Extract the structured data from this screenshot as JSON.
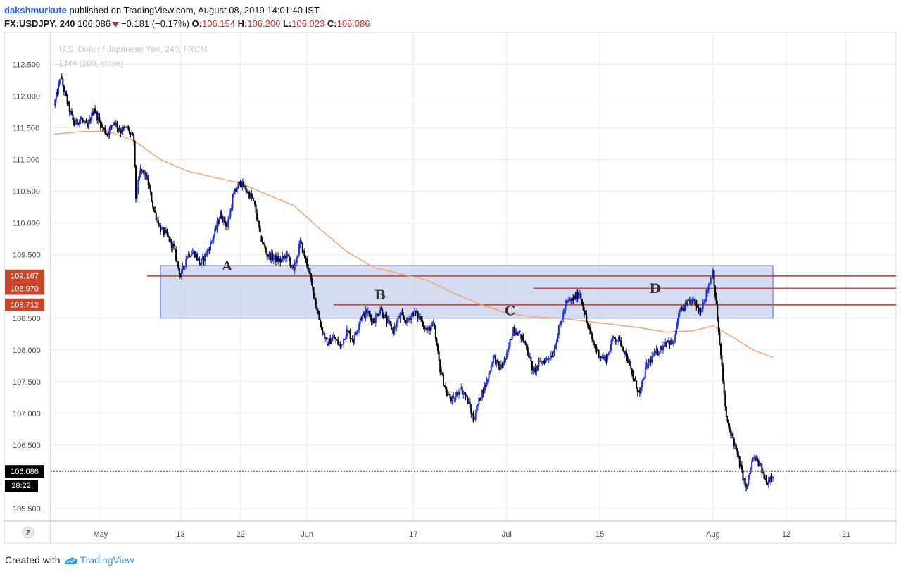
{
  "header": {
    "author": "dakshmurkute",
    "published": "published on TradingView.com, August 08, 2019 14:01:40 IST",
    "symbol": "FX:USDJPY, 240",
    "last": "106.086",
    "change": "−0.181 (−0.17%)",
    "o_label": "O:",
    "o": "106.154",
    "h_label": "H:",
    "h": "106.200",
    "l_label": "L:",
    "l": "106.023",
    "c_label": "C:",
    "c": "106.086"
  },
  "footer": {
    "created_with": "Created with",
    "brand": "TradingView"
  },
  "colors": {
    "candle_up": "#1f2fe0",
    "candle_down": "#000000",
    "ema": "#f6a672",
    "level_line": "#c0504d",
    "zone_fill": "#c9d3ee",
    "zone_border": "#5a6fc0",
    "price_tag_red": "#c8472b",
    "price_tag_black": "#000000",
    "grid": "#ececec"
  },
  "chart_data": {
    "type": "candlestick",
    "legend": [
      "U.S. Dollar / Japanese Yen, 240, FXCM",
      "EMA (200, close)"
    ],
    "y_ticks": [
      "112.500",
      "112.000",
      "111.500",
      "111.000",
      "110.500",
      "110.000",
      "109.500",
      "108.500",
      "108.000",
      "107.500",
      "107.000",
      "106.500",
      "105.500"
    ],
    "y_range": [
      105.3,
      112.85
    ],
    "x_ticks": [
      "May",
      "13",
      "22",
      "Jun",
      "17",
      "Jul",
      "15",
      "Aug",
      "12",
      "21"
    ],
    "x_tick_days": [
      1,
      13,
      22,
      32,
      48,
      62,
      76,
      93,
      104,
      113
    ],
    "x_range_days": [
      -6.5,
      120.5
    ],
    "x_axis_note": "day 1 = May 1, 2019; day 93 = Aug 1, 2019",
    "path": [
      [
        -6,
        111.85
      ],
      [
        -5,
        112.3
      ],
      [
        -4,
        111.9
      ],
      [
        -3,
        111.55
      ],
      [
        -2,
        111.65
      ],
      [
        -1,
        111.5
      ],
      [
        0,
        111.8
      ],
      [
        1,
        111.55
      ],
      [
        2,
        111.4
      ],
      [
        3,
        111.6
      ],
      [
        4,
        111.45
      ],
      [
        5,
        111.5
      ],
      [
        6,
        111.3
      ],
      [
        6.3,
        110.4
      ],
      [
        7,
        110.85
      ],
      [
        8,
        110.7
      ],
      [
        9,
        110.2
      ],
      [
        10,
        109.9
      ],
      [
        11,
        109.8
      ],
      [
        12,
        109.6
      ],
      [
        13,
        109.15
      ],
      [
        14,
        109.5
      ],
      [
        15,
        109.55
      ],
      [
        16,
        109.35
      ],
      [
        17,
        109.55
      ],
      [
        18,
        109.8
      ],
      [
        19,
        110.15
      ],
      [
        20,
        109.95
      ],
      [
        21,
        110.45
      ],
      [
        22,
        110.65
      ],
      [
        23,
        110.5
      ],
      [
        24,
        110.35
      ],
      [
        25,
        109.8
      ],
      [
        26,
        109.5
      ],
      [
        27,
        109.45
      ],
      [
        28,
        109.4
      ],
      [
        29,
        109.5
      ],
      [
        30,
        109.25
      ],
      [
        31,
        109.7
      ],
      [
        32,
        109.35
      ],
      [
        33,
        108.9
      ],
      [
        34,
        108.4
      ],
      [
        35,
        108.1
      ],
      [
        36,
        108.2
      ],
      [
        37,
        108.05
      ],
      [
        38,
        108.3
      ],
      [
        39,
        108.15
      ],
      [
        40,
        108.5
      ],
      [
        41,
        108.6
      ],
      [
        42,
        108.45
      ],
      [
        43,
        108.65
      ],
      [
        44,
        108.45
      ],
      [
        45,
        108.3
      ],
      [
        46,
        108.55
      ],
      [
        47,
        108.45
      ],
      [
        48,
        108.6
      ],
      [
        49,
        108.5
      ],
      [
        50,
        108.3
      ],
      [
        51,
        108.4
      ],
      [
        52,
        107.7
      ],
      [
        53,
        107.3
      ],
      [
        54,
        107.2
      ],
      [
        55,
        107.4
      ],
      [
        56,
        107.25
      ],
      [
        57,
        106.9
      ],
      [
        58,
        107.25
      ],
      [
        59,
        107.5
      ],
      [
        60,
        107.9
      ],
      [
        61,
        107.7
      ],
      [
        62,
        107.9
      ],
      [
        63,
        108.35
      ],
      [
        64,
        108.25
      ],
      [
        65,
        108.05
      ],
      [
        66,
        107.65
      ],
      [
        67,
        107.8
      ],
      [
        68,
        107.85
      ],
      [
        69,
        107.95
      ],
      [
        70,
        108.4
      ],
      [
        71,
        108.75
      ],
      [
        72,
        108.8
      ],
      [
        73,
        108.9
      ],
      [
        74,
        108.45
      ],
      [
        75,
        108.1
      ],
      [
        76,
        107.9
      ],
      [
        77,
        107.85
      ],
      [
        78,
        108.2
      ],
      [
        79,
        108.15
      ],
      [
        80,
        107.9
      ],
      [
        81,
        107.55
      ],
      [
        82,
        107.3
      ],
      [
        83,
        107.75
      ],
      [
        84,
        107.9
      ],
      [
        85,
        108.0
      ],
      [
        86,
        108.15
      ],
      [
        87,
        108.1
      ],
      [
        88,
        108.6
      ],
      [
        89,
        108.7
      ],
      [
        90,
        108.8
      ],
      [
        91,
        108.6
      ],
      [
        92,
        108.9
      ],
      [
        93,
        109.25
      ],
      [
        94,
        108.1
      ],
      [
        95,
        106.9
      ],
      [
        96,
        106.6
      ],
      [
        97,
        106.2
      ],
      [
        98,
        105.8
      ],
      [
        99,
        106.3
      ],
      [
        100,
        106.2
      ],
      [
        101,
        105.9
      ],
      [
        102,
        106.05
      ]
    ],
    "ema_200": [
      [
        -6,
        111.4
      ],
      [
        -2,
        111.44
      ],
      [
        2,
        111.45
      ],
      [
        6,
        111.3
      ],
      [
        10,
        111.0
      ],
      [
        14,
        110.82
      ],
      [
        18,
        110.72
      ],
      [
        22,
        110.63
      ],
      [
        26,
        110.45
      ],
      [
        30,
        110.28
      ],
      [
        34,
        109.9
      ],
      [
        38,
        109.55
      ],
      [
        42,
        109.3
      ],
      [
        46,
        109.2
      ],
      [
        50,
        109.1
      ],
      [
        54,
        108.9
      ],
      [
        58,
        108.72
      ],
      [
        62,
        108.58
      ],
      [
        66,
        108.52
      ],
      [
        70,
        108.5
      ],
      [
        74,
        108.45
      ],
      [
        78,
        108.4
      ],
      [
        82,
        108.35
      ],
      [
        86,
        108.28
      ],
      [
        90,
        108.3
      ],
      [
        93,
        108.38
      ],
      [
        96,
        108.2
      ],
      [
        99,
        108.0
      ],
      [
        102,
        107.88
      ]
    ],
    "zone": {
      "day_start": 10,
      "day_end": 102,
      "price_low": 108.5,
      "price_high": 109.33
    },
    "levels": [
      {
        "price": 109.167,
        "label": "109.167",
        "day_start": 8
      },
      {
        "price": 108.97,
        "label": "108.970",
        "day_start": 66
      },
      {
        "price": 108.712,
        "label": "108.712",
        "day_start": 36
      }
    ],
    "annotations": [
      {
        "text": "A",
        "day": 20,
        "price": 109.25
      },
      {
        "text": "B",
        "day": 43,
        "price": 108.8
      },
      {
        "text": "C",
        "day": 62.5,
        "price": 108.55
      },
      {
        "text": "D",
        "day": 84.3,
        "price": 108.9
      }
    ],
    "last_price": {
      "value": 106.086,
      "label": "106.086",
      "countdown": "28:22"
    }
  }
}
